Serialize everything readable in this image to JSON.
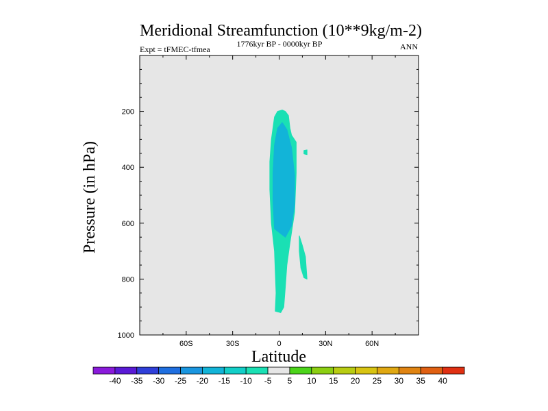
{
  "chart_data": {
    "type": "contour",
    "title": "Meridional Streamfunction (10**9kg/m-2)",
    "subtitle_left": "Expt = tFMEC-tfmea",
    "subtitle_center": "1776kyr BP - 0000kyr BP",
    "subtitle_right": "ANN",
    "xlabel": "Latitude",
    "ylabel": "Pressure (in hPa)",
    "xlim": [
      -90,
      90
    ],
    "ylim": [
      1000,
      0
    ],
    "x_ticks": [
      {
        "value": -60,
        "label": "60S"
      },
      {
        "value": -30,
        "label": "30S"
      },
      {
        "value": 0,
        "label": "0"
      },
      {
        "value": 30,
        "label": "30N"
      },
      {
        "value": 60,
        "label": "60N"
      }
    ],
    "y_ticks": [
      {
        "value": 200,
        "label": "200"
      },
      {
        "value": 400,
        "label": "400"
      },
      {
        "value": 600,
        "label": "600"
      },
      {
        "value": 800,
        "label": "800"
      },
      {
        "value": 1000,
        "label": "1000"
      }
    ],
    "background_color": "#e6e6e6",
    "colorbar": {
      "labels": [
        "-40",
        "-35",
        "-30",
        "-25",
        "-20",
        "-15",
        "-10",
        "-5",
        "5",
        "10",
        "15",
        "20",
        "25",
        "30",
        "35",
        "40"
      ],
      "colors": [
        "#8a1adb",
        "#5a1ad6",
        "#2f3fd9",
        "#1f6fe0",
        "#1a96e0",
        "#12b4d8",
        "#12cfc8",
        "#1ae0b4",
        "#e6e6e6",
        "#4cd41a",
        "#8ccf12",
        "#b8cc12",
        "#d8c412",
        "#e0a812",
        "#e08412",
        "#e06012",
        "#e03012"
      ]
    },
    "regions": [
      {
        "name": "main-band-outer",
        "level": "-10 to -5",
        "color": "#1ae0b4",
        "points": [
          [
            -2.5,
            915
          ],
          [
            -2,
            850
          ],
          [
            -3,
            700
          ],
          [
            -5,
            600
          ],
          [
            -6,
            480
          ],
          [
            -6,
            380
          ],
          [
            -5,
            300
          ],
          [
            -3,
            220
          ],
          [
            -1,
            200
          ],
          [
            2,
            195
          ],
          [
            4,
            200
          ],
          [
            6,
            215
          ],
          [
            7,
            260
          ],
          [
            8,
            285
          ],
          [
            11,
            310
          ],
          [
            11,
            420
          ],
          [
            10,
            560
          ],
          [
            7,
            670
          ],
          [
            5,
            750
          ],
          [
            4,
            830
          ],
          [
            3,
            900
          ],
          [
            1,
            920
          ],
          [
            -2.5,
            915
          ]
        ]
      },
      {
        "name": "main-band-inner",
        "level": "-15 to -10",
        "color": "#12b4d8",
        "points": [
          [
            -3,
            620
          ],
          [
            -4,
            520
          ],
          [
            -4,
            420
          ],
          [
            -3,
            320
          ],
          [
            -1,
            260
          ],
          [
            2,
            240
          ],
          [
            5,
            265
          ],
          [
            8,
            330
          ],
          [
            10,
            430
          ],
          [
            10,
            530
          ],
          [
            8,
            610
          ],
          [
            4,
            650
          ],
          [
            -3,
            620
          ]
        ]
      },
      {
        "name": "right-strip-lower",
        "level": "-10 to -5",
        "color": "#1ae0b4",
        "points": [
          [
            13,
            645
          ],
          [
            15,
            680
          ],
          [
            17,
            720
          ],
          [
            18,
            800
          ],
          [
            16,
            795
          ],
          [
            14,
            760
          ],
          [
            13,
            700
          ],
          [
            13,
            645
          ]
        ]
      },
      {
        "name": "right-speck-upper",
        "level": "-10 to -5",
        "color": "#1ae0b4",
        "points": [
          [
            16,
            340
          ],
          [
            18,
            338
          ],
          [
            18,
            355
          ],
          [
            16,
            352
          ],
          [
            16,
            340
          ]
        ]
      }
    ]
  }
}
